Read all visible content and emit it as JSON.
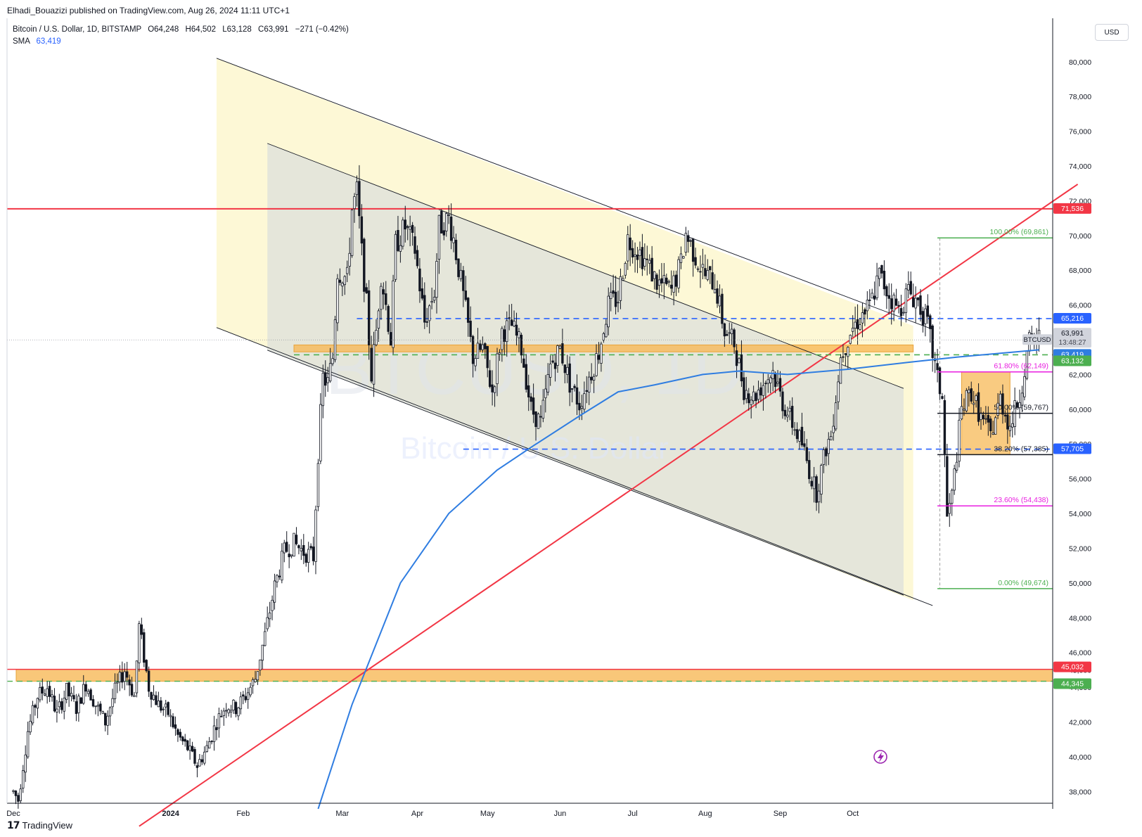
{
  "header": {
    "publisher_line": "Elhadi_Bouazizi published on TradingView.com, Aug 26, 2024 11:11 UTC+1"
  },
  "legend": {
    "symbol": "Bitcoin / U.S. Dollar, 1D, BITSTAMP",
    "open_label": "O",
    "open": "64,248",
    "high_label": "H",
    "high": "64,502",
    "low_label": "L",
    "low": "63,128",
    "close_label": "C",
    "close": "63,991",
    "change": "−271 (−0.42%)",
    "sma_label": "SMA",
    "sma_value": "63,419"
  },
  "currency_button": "USD",
  "watermark": {
    "ticker": "BTCUSD, 1D",
    "name": "Bitcoin / U.S. Dollar"
  },
  "footer": {
    "brand": "TradingView"
  },
  "colors": {
    "up": "#ffffff",
    "down": "#131722",
    "red_line": "#f23645",
    "blue_line": "#2962ff",
    "sma": "#2f7de1",
    "fib_green": "#4caf50",
    "fib_magenta": "#e91ee0",
    "orange_zone": "#f7b957"
  },
  "chart_data": {
    "type": "candlestick",
    "timeframe": "1D",
    "exchange": "BITSTAMP",
    "x_tick_labels": [
      "Dec",
      "2024",
      "Feb",
      "Mar",
      "Apr",
      "May",
      "Jun",
      "Jul",
      "Aug",
      "Sep",
      "Oct"
    ],
    "y_tick_labels": [
      "38,000",
      "40,000",
      "42,000",
      "44,000",
      "45,000",
      "46,000",
      "48,000",
      "50,000",
      "52,000",
      "54,000",
      "56,000",
      "58,000",
      "60,000",
      "62,000",
      "64,000",
      "66,000",
      "68,000",
      "70,000",
      "72,000",
      "74,000",
      "76,000",
      "78,000",
      "80,000"
    ],
    "ylim": [
      37000,
      82500
    ],
    "price_labels": [
      {
        "name": "resistance",
        "value": "71,536",
        "color": "#f23645",
        "text_color": "#ffffff"
      },
      {
        "name": "dashed-high",
        "value": "65,216",
        "color": "#2962ff",
        "text_color": "#ffffff"
      },
      {
        "name": "last",
        "value": "63,991",
        "sub": "13:48:27",
        "color": "#d1d4dc",
        "text_color": "#131722"
      },
      {
        "name": "sma",
        "value": "63,419",
        "color": "#2f7de1",
        "text_color": "#ffffff"
      },
      {
        "name": "low-of-day",
        "value": "63,132",
        "color": "#4caf50",
        "text_color": "#ffffff"
      },
      {
        "name": "dashed-low",
        "value": "57,705",
        "color": "#2962ff",
        "text_color": "#ffffff"
      },
      {
        "name": "zone-top",
        "value": "45,032",
        "color": "#f23645",
        "text_color": "#ffffff"
      },
      {
        "name": "zone-bottom",
        "value": "44,345",
        "color": "#4caf50",
        "text_color": "#ffffff"
      }
    ],
    "symbol_tag": "BTCUSD",
    "fibonacci": [
      {
        "label": "100.00% (69,861)",
        "price": 69861,
        "color": "#4caf50"
      },
      {
        "label": "61.80% (62,149)",
        "price": 62149,
        "color": "#e91ee0"
      },
      {
        "label": "50.00% (59,767)",
        "price": 59767,
        "color": "#131722"
      },
      {
        "label": "38.20% (57,385)",
        "price": 57385,
        "color": "#131722"
      },
      {
        "label": "23.60% (54,438)",
        "price": 54438,
        "color": "#e91ee0"
      },
      {
        "label": "0.00% (49,674)",
        "price": 49674,
        "color": "#4caf50"
      }
    ],
    "horizontal_levels": [
      {
        "price": 71536,
        "style": "solid",
        "color": "#f23645"
      },
      {
        "price": 65216,
        "style": "dashed",
        "color": "#2962ff"
      },
      {
        "price": 57705,
        "style": "dashed",
        "color": "#2962ff"
      },
      {
        "price": 63132,
        "style": "dashed",
        "color": "#4caf50"
      }
    ],
    "zones": [
      {
        "name": "support-zone",
        "top": 45032,
        "bottom": 44345
      },
      {
        "name": "mid-zone",
        "top": 63700,
        "bottom": 63300
      }
    ],
    "candle_path": [
      [
        0,
        38000
      ],
      [
        2,
        37500
      ],
      [
        6,
        41500
      ],
      [
        10,
        43500
      ],
      [
        14,
        44000
      ],
      [
        18,
        42500
      ],
      [
        22,
        43800
      ],
      [
        26,
        42800
      ],
      [
        30,
        44200
      ],
      [
        34,
        43000
      ],
      [
        38,
        42000
      ],
      [
        42,
        43800
      ],
      [
        46,
        45000
      ],
      [
        50,
        43500
      ],
      [
        52,
        47500
      ],
      [
        56,
        44000
      ],
      [
        60,
        43000
      ],
      [
        64,
        42500
      ],
      [
        68,
        41200
      ],
      [
        72,
        40500
      ],
      [
        76,
        39500
      ],
      [
        80,
        40500
      ],
      [
        84,
        42000
      ],
      [
        88,
        43000
      ],
      [
        92,
        42800
      ],
      [
        96,
        43500
      ],
      [
        100,
        44500
      ],
      [
        104,
        47000
      ],
      [
        108,
        49800
      ],
      [
        112,
        51800
      ],
      [
        116,
        52300
      ],
      [
        120,
        51800
      ],
      [
        124,
        51500
      ],
      [
        126,
        57500
      ],
      [
        128,
        61800
      ],
      [
        130,
        61500
      ],
      [
        132,
        63000
      ],
      [
        134,
        68000
      ],
      [
        138,
        67500
      ],
      [
        140,
        71500
      ],
      [
        142,
        72500
      ],
      [
        144,
        69000
      ],
      [
        146,
        66000
      ],
      [
        148,
        62000
      ],
      [
        150,
        64500
      ],
      [
        152,
        67800
      ],
      [
        154,
        66000
      ],
      [
        156,
        64000
      ],
      [
        158,
        69500
      ],
      [
        162,
        70500
      ],
      [
        166,
        69200
      ],
      [
        170,
        65000
      ],
      [
        174,
        66800
      ],
      [
        176,
        70500
      ],
      [
        180,
        71000
      ],
      [
        182,
        69800
      ],
      [
        186,
        66500
      ],
      [
        190,
        63000
      ],
      [
        194,
        63500
      ],
      [
        198,
        61000
      ],
      [
        202,
        64500
      ],
      [
        206,
        64800
      ],
      [
        210,
        63500
      ],
      [
        214,
        60000
      ],
      [
        218,
        59200
      ],
      [
        222,
        62500
      ],
      [
        226,
        63500
      ],
      [
        230,
        61500
      ],
      [
        234,
        60300
      ],
      [
        238,
        61800
      ],
      [
        242,
        63300
      ],
      [
        246,
        66000
      ],
      [
        250,
        66400
      ],
      [
        254,
        69800
      ],
      [
        258,
        69200
      ],
      [
        262,
        68400
      ],
      [
        266,
        67300
      ],
      [
        270,
        67000
      ],
      [
        272,
        66800
      ],
      [
        276,
        68400
      ],
      [
        278,
        70100
      ],
      [
        282,
        68800
      ],
      [
        286,
        67700
      ],
      [
        290,
        67300
      ],
      [
        294,
        64500
      ],
      [
        298,
        63800
      ],
      [
        302,
        61200
      ],
      [
        306,
        60700
      ],
      [
        310,
        61500
      ],
      [
        314,
        62200
      ],
      [
        318,
        60400
      ],
      [
        322,
        59200
      ],
      [
        326,
        58000
      ],
      [
        330,
        56000
      ],
      [
        332,
        55200
      ],
      [
        336,
        57800
      ],
      [
        338,
        58500
      ],
      [
        342,
        63000
      ],
      [
        346,
        64500
      ],
      [
        350,
        65300
      ],
      [
        354,
        65900
      ],
      [
        358,
        67700
      ],
      [
        362,
        66600
      ],
      [
        366,
        65700
      ],
      [
        370,
        66800
      ],
      [
        374,
        66200
      ],
      [
        378,
        64800
      ],
      [
        382,
        61700
      ],
      [
        384,
        60700
      ],
      [
        386,
        53800
      ],
      [
        388,
        55000
      ],
      [
        392,
        60000
      ],
      [
        396,
        61000
      ],
      [
        400,
        59500
      ],
      [
        404,
        58500
      ],
      [
        408,
        60600
      ],
      [
        412,
        59000
      ],
      [
        416,
        60800
      ],
      [
        420,
        63800
      ],
      [
        424,
        64100
      ]
    ],
    "sma_points": [
      [
        126,
        37000
      ],
      [
        140,
        43000
      ],
      [
        160,
        50000
      ],
      [
        180,
        54000
      ],
      [
        200,
        56500
      ],
      [
        215,
        57900
      ],
      [
        235,
        59700
      ],
      [
        250,
        61000
      ],
      [
        265,
        61400
      ],
      [
        285,
        62000
      ],
      [
        300,
        62200
      ],
      [
        320,
        62000
      ],
      [
        345,
        62300
      ],
      [
        370,
        62700
      ],
      [
        390,
        63000
      ],
      [
        424,
        63419
      ]
    ],
    "trendlines": {
      "red_rising": {
        "from": [
          52,
          36000
        ],
        "to": [
          440,
          72950
        ]
      },
      "outer_channel_top": {
        "from": [
          84,
          80200
        ],
        "to": [
          380,
          64600
        ]
      },
      "outer_channel_bottom": {
        "from": [
          84,
          64700
        ],
        "to": [
          380,
          48700
        ]
      },
      "inner_channel_top": {
        "from": [
          105,
          75300
        ],
        "to": [
          368,
          61200
        ]
      },
      "inner_channel_bottom": {
        "from": [
          105,
          63400
        ],
        "to": [
          368,
          49300
        ]
      }
    }
  }
}
